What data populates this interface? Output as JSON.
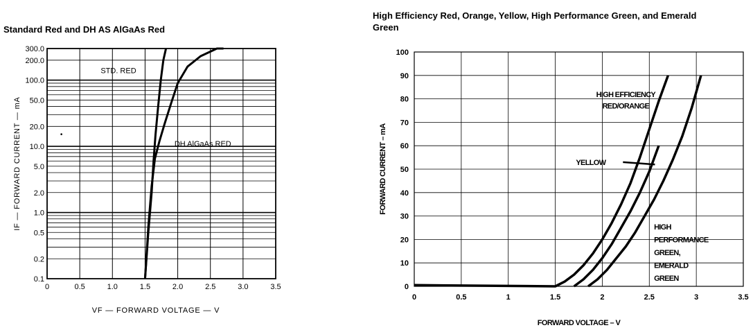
{
  "chart_data": [
    {
      "type": "line",
      "title": "Standard Red and DH AS AlGaAs Red",
      "xlabel": "VF — FORWARD VOLTAGE — V",
      "ylabel": "IF — FORWARD CURRENT — mA",
      "xlim": [
        0,
        3.5
      ],
      "ylim": [
        0.1,
        300
      ],
      "yscale": "log",
      "grid": true,
      "x_ticks": [
        "0",
        "0.5",
        "1.0",
        "1.5",
        "2.0",
        "2.5",
        "3.0",
        "3.5"
      ],
      "y_ticks": [
        "300.0",
        "200.0",
        "100.0",
        "50.0",
        "20.0",
        "10.0",
        "5.0",
        "2.0",
        "1.0",
        "0.5",
        "0.2",
        "0.1"
      ],
      "series": [
        {
          "name": "STD. RED",
          "x": [
            1.5,
            1.55,
            1.6,
            1.63,
            1.66,
            1.7,
            1.74,
            1.78,
            1.82
          ],
          "y": [
            0.1,
            0.5,
            2,
            6,
            15,
            40,
            100,
            200,
            300
          ]
        },
        {
          "name": "DH AlGaAs RED",
          "x": [
            1.5,
            1.55,
            1.6,
            1.65,
            1.72,
            1.8,
            1.9,
            2.0,
            2.15,
            2.35,
            2.6,
            2.7
          ],
          "y": [
            0.1,
            0.6,
            2.5,
            6.5,
            12,
            22,
            45,
            90,
            160,
            230,
            300,
            300
          ]
        }
      ]
    },
    {
      "type": "line",
      "title": "High Efficiency Red, Orange, Yellow, High Performance Green, and Emerald Green",
      "xlabel": "FORWARD VOLTAGE – V",
      "ylabel": "FORWARD CURRENT – mA",
      "xlim": [
        0,
        3.5
      ],
      "ylim": [
        0,
        100
      ],
      "grid": true,
      "x_ticks": [
        "0",
        "0.5",
        "1",
        "1.5",
        "2",
        "2.5",
        "3",
        "3.5"
      ],
      "y_ticks": [
        "0",
        "10",
        "20",
        "30",
        "40",
        "50",
        "60",
        "70",
        "80",
        "90",
        "100"
      ],
      "series": [
        {
          "name": "HIGH EFFICIENCY RED/ORANGE",
          "x": [
            0,
            1.5,
            1.6,
            1.7,
            1.8,
            1.9,
            2.0,
            2.1,
            2.2,
            2.3,
            2.4,
            2.5,
            2.6,
            2.7
          ],
          "y": [
            0.5,
            0,
            2,
            5,
            9,
            14,
            20,
            27,
            35,
            44,
            55,
            67,
            79,
            90
          ]
        },
        {
          "name": "YELLOW",
          "x": [
            1.7,
            1.8,
            1.9,
            2.0,
            2.1,
            2.2,
            2.3,
            2.4,
            2.5,
            2.6
          ],
          "y": [
            0,
            3,
            7,
            12,
            18,
            25,
            32,
            40,
            49,
            60
          ]
        },
        {
          "name": "HIGH PERFORMANCE GREEN, EMERALD GREEN",
          "x": [
            1.85,
            1.95,
            2.05,
            2.15,
            2.25,
            2.35,
            2.45,
            2.55,
            2.65,
            2.75,
            2.85,
            2.95,
            3.05
          ],
          "y": [
            0,
            3,
            7,
            12,
            17,
            23,
            30,
            37,
            45,
            54,
            64,
            76,
            90
          ]
        }
      ],
      "annotations": [
        "HIGH EFFICIENCY",
        "RED/ORANGE",
        "YELLOW",
        "HIGH",
        "PERFORMANCE",
        "GREEN,",
        "EMERALD",
        "GREEN"
      ]
    }
  ]
}
